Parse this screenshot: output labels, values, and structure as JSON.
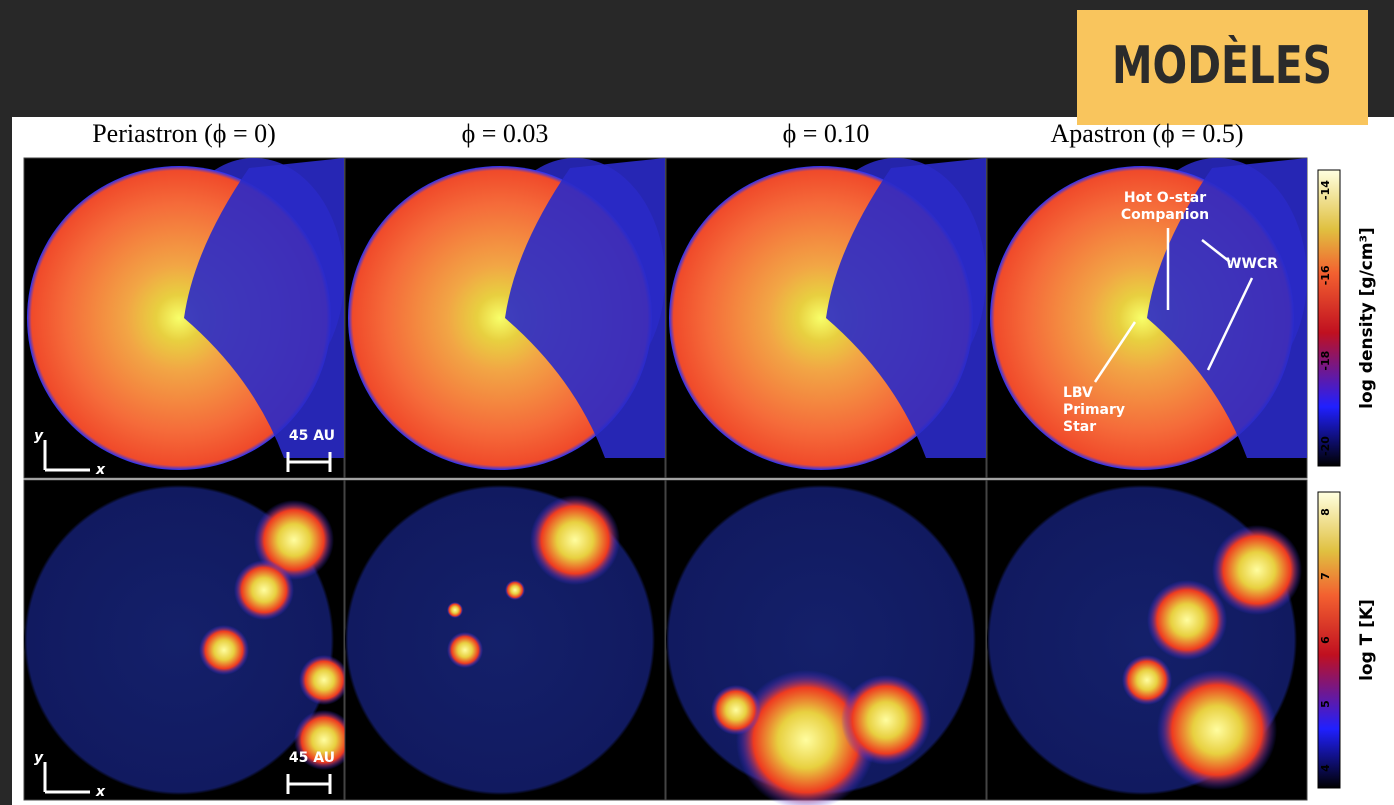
{
  "header": {
    "title": "MODÈLES"
  },
  "figure": {
    "columns": [
      "Periastron (ϕ = 0)",
      "ϕ = 0.03",
      "ϕ = 0.10",
      "Apastron (ϕ = 0.5)"
    ],
    "annotations": {
      "companion": [
        "Hot O-star",
        "Companion"
      ],
      "wwcr": "WWCR",
      "primary": [
        "LBV",
        "Primary",
        "Star"
      ],
      "scale_top": "45 AU",
      "scale_bottom": "45 AU",
      "axis_y": "y",
      "axis_x": "x"
    },
    "colorbars": [
      {
        "label": "log density [g/cm³]",
        "ticks": [
          "-14",
          "-16",
          "-18",
          "-20"
        ]
      },
      {
        "label": "log T [K]",
        "ticks": [
          "8",
          "7",
          "6",
          "5",
          "4"
        ]
      }
    ]
  }
}
